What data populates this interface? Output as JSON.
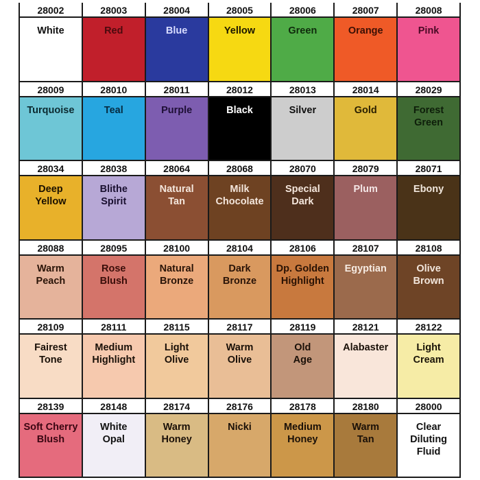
{
  "swatches": [
    {
      "code": "28002",
      "name": "White",
      "color": "#ffffff",
      "text": "#111111"
    },
    {
      "code": "28003",
      "name": "Red",
      "color": "#c11f2b",
      "text": "#4a0a0e"
    },
    {
      "code": "28004",
      "name": "Blue",
      "color": "#2a3a9e",
      "text": "#d8dcff"
    },
    {
      "code": "28005",
      "name": "Yellow",
      "color": "#f6d912",
      "text": "#1a1500"
    },
    {
      "code": "28006",
      "name": "Green",
      "color": "#4fab47",
      "text": "#0f2a0c"
    },
    {
      "code": "28007",
      "name": "Orange",
      "color": "#ef5a27",
      "text": "#3a1005"
    },
    {
      "code": "28008",
      "name": "Pink",
      "color": "#ef5590",
      "text": "#4a0a25"
    },
    {
      "code": "28009",
      "name": "Turquoise",
      "color": "#6ec6d6",
      "text": "#0c2a30"
    },
    {
      "code": "28010",
      "name": "Teal",
      "color": "#27a6e0",
      "text": "#062a40"
    },
    {
      "code": "28011",
      "name": "Purple",
      "color": "#7d5db0",
      "text": "#1e0f35"
    },
    {
      "code": "28012",
      "name": "Black",
      "color": "#000000",
      "text": "#ffffff"
    },
    {
      "code": "28013",
      "name": "Silver",
      "color": "#cdcdcd",
      "text": "#111111"
    },
    {
      "code": "28014",
      "name": "Gold",
      "color": "#e0b93a",
      "text": "#2a1f00"
    },
    {
      "code": "28029",
      "name": "Forest\nGreen",
      "color": "#3f6a33",
      "text": "#0e1e0a"
    },
    {
      "code": "28034",
      "name": "Deep\nYellow",
      "color": "#e8b12a",
      "text": "#1a1000"
    },
    {
      "code": "28038",
      "name": "Blithe\nSpirit",
      "color": "#b7a8d6",
      "text": "#1a1030"
    },
    {
      "code": "28064",
      "name": "Natural\nTan",
      "color": "#8b4f33",
      "text": "#f4e6dc"
    },
    {
      "code": "28068",
      "name": "Milk\nChocolate",
      "color": "#6e4222",
      "text": "#f4e6dc"
    },
    {
      "code": "28070",
      "name": "Special\nDark",
      "color": "#4e2f1c",
      "text": "#f4e6dc"
    },
    {
      "code": "28079",
      "name": "Plum",
      "color": "#9b6060",
      "text": "#f4e6e6"
    },
    {
      "code": "28071",
      "name": "Ebony",
      "color": "#4a3318",
      "text": "#f0e6dc"
    },
    {
      "code": "28088",
      "name": "Warm\nPeach",
      "color": "#e5b39b",
      "text": "#2a1408"
    },
    {
      "code": "28095",
      "name": "Rose\nBlush",
      "color": "#d4746a",
      "text": "#3a0e0a"
    },
    {
      "code": "28100",
      "name": "Natural\nBronze",
      "color": "#eba97b",
      "text": "#2a1408"
    },
    {
      "code": "28104",
      "name": "Dark\nBronze",
      "color": "#d9995f",
      "text": "#2a1408"
    },
    {
      "code": "28106",
      "name": "Dp. Golden\nHighlight",
      "color": "#c8793e",
      "text": "#2a1204"
    },
    {
      "code": "28107",
      "name": "Egyptian",
      "color": "#9b6a4c",
      "text": "#f6ebe2"
    },
    {
      "code": "28108",
      "name": "Olive\nBrown",
      "color": "#6e4426",
      "text": "#f2e6dc"
    },
    {
      "code": "28109",
      "name": "Fairest\nTone",
      "color": "#f8dcc5",
      "text": "#1a1008"
    },
    {
      "code": "28111",
      "name": "Medium\nHighlight",
      "color": "#f6c9ae",
      "text": "#1a1008"
    },
    {
      "code": "28115",
      "name": "Light\nOlive",
      "color": "#f1c99c",
      "text": "#1a1008"
    },
    {
      "code": "28117",
      "name": "Warm\nOlive",
      "color": "#e9be96",
      "text": "#1a1008"
    },
    {
      "code": "28119",
      "name": "Old\nAge",
      "color": "#c2967a",
      "text": "#1a1008"
    },
    {
      "code": "28121",
      "name": "Alabaster",
      "color": "#f9e6da",
      "text": "#1a1008"
    },
    {
      "code": "28122",
      "name": "Light\nCream",
      "color": "#f6eca6",
      "text": "#1a1408"
    },
    {
      "code": "28139",
      "name": "Soft Cherry\nBlush",
      "color": "#e56b7d",
      "text": "#3a0612"
    },
    {
      "code": "28148",
      "name": "White\nOpal",
      "color": "#f1eef6",
      "text": "#111111"
    },
    {
      "code": "28174",
      "name": "Warm\nHoney",
      "color": "#d9bb84",
      "text": "#1a1008"
    },
    {
      "code": "28176",
      "name": "Nicki",
      "color": "#d7a86a",
      "text": "#1a1008"
    },
    {
      "code": "28178",
      "name": "Medium\nHoney",
      "color": "#cc9749",
      "text": "#1a1008"
    },
    {
      "code": "28180",
      "name": "Warm\nTan",
      "color": "#a87a3c",
      "text": "#1a1008"
    },
    {
      "code": "28000",
      "name": "Clear\nDiluting\nFluid",
      "color": "#ffffff",
      "text": "#111111"
    }
  ]
}
